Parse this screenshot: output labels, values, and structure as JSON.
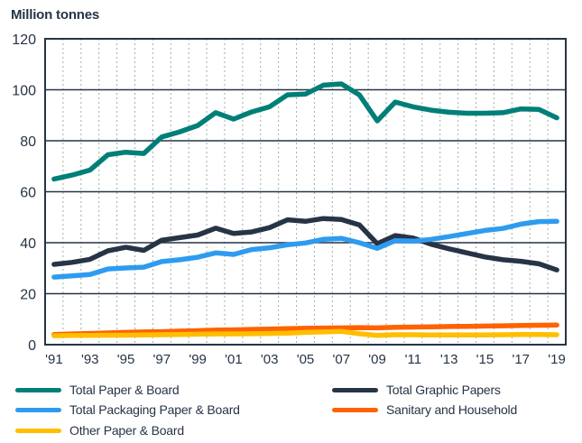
{
  "chart_data": {
    "type": "line",
    "title": "",
    "ylabel": "Million tonnes",
    "xlabel": "",
    "ylim": [
      0,
      120
    ],
    "yticks": [
      0,
      20,
      40,
      60,
      80,
      100,
      120
    ],
    "x": [
      1991,
      1992,
      1993,
      1994,
      1995,
      1996,
      1997,
      1998,
      1999,
      2000,
      2001,
      2002,
      2003,
      2004,
      2005,
      2006,
      2007,
      2008,
      2009,
      2010,
      2011,
      2012,
      2013,
      2014,
      2015,
      2016,
      2017,
      2018,
      2019
    ],
    "xtick_labels": [
      "'91",
      "'93",
      "'95",
      "'97",
      "'99",
      "'01",
      "'03",
      "'05",
      "'07",
      "'09",
      "'11",
      "'13",
      "'15",
      "'17",
      "'19"
    ],
    "xtick_years": [
      1991,
      1993,
      1995,
      1997,
      1999,
      2001,
      2003,
      2005,
      2007,
      2009,
      2011,
      2013,
      2015,
      2017,
      2019
    ],
    "grid": {
      "horizontal": true,
      "vertical_dotted": true
    },
    "legend_position": "bottom",
    "series": [
      {
        "name": "Total Paper & Board",
        "color": "#007F78",
        "values": [
          65,
          66.5,
          68.5,
          74.5,
          75.5,
          75,
          81.5,
          83.5,
          86,
          91,
          88.5,
          91.3,
          93.3,
          98,
          98.3,
          101.8,
          102.3,
          98,
          87.8,
          95.2,
          93.3,
          92,
          91.2,
          90.8,
          90.8,
          91,
          92.5,
          92.3,
          89
        ]
      },
      {
        "name": "Total Graphic Papers",
        "color": "#263445",
        "values": [
          31.5,
          32.3,
          33.5,
          36.8,
          38.2,
          37,
          41,
          42,
          43,
          45.7,
          43.6,
          44.2,
          45.9,
          49,
          48.4,
          49.5,
          49.1,
          47,
          39.6,
          42.8,
          41.8,
          39.4,
          37.6,
          36,
          34.4,
          33.3,
          32.7,
          31.7,
          29.3
        ]
      },
      {
        "name": "Total Packaging Paper & Board",
        "color": "#2E9BF0",
        "values": [
          26.5,
          27,
          27.5,
          29.7,
          30.1,
          30.4,
          32.6,
          33.3,
          34.3,
          36,
          35.4,
          37.3,
          38,
          39.2,
          39.9,
          41.3,
          41.7,
          40,
          37.8,
          40.8,
          40.6,
          41.3,
          42.4,
          43.6,
          44.8,
          45.6,
          47.3,
          48.3,
          48.4
        ]
      },
      {
        "name": "Sanitary and Household",
        "color": "#FF6200",
        "values": [
          4,
          4.2,
          4.4,
          4.6,
          4.8,
          5,
          5.1,
          5.3,
          5.5,
          5.7,
          5.8,
          6,
          6.1,
          6.3,
          6.4,
          6.5,
          6.6,
          6.7,
          6.6,
          6.8,
          6.9,
          7,
          7.1,
          7.2,
          7.3,
          7.4,
          7.5,
          7.6,
          7.7
        ]
      },
      {
        "name": "Other Paper & Board",
        "color": "#FFBE00",
        "values": [
          3.5,
          3.6,
          3.6,
          3.7,
          3.7,
          3.8,
          3.9,
          4,
          4.1,
          4.2,
          4.2,
          4.3,
          4.4,
          4.5,
          4.8,
          5,
          5.2,
          4.3,
          3.6,
          3.9,
          3.9,
          3.8,
          3.8,
          3.8,
          3.8,
          3.9,
          4,
          4,
          3.9
        ]
      }
    ]
  },
  "header": {
    "unit_label": "Million tonnes"
  },
  "legend": [
    {
      "label": "Total Paper & Board",
      "color": "#007F78"
    },
    {
      "label": "Total Graphic Papers",
      "color": "#263445"
    },
    {
      "label": "Total Packaging Paper & Board",
      "color": "#2E9BF0"
    },
    {
      "label": "Sanitary and Household",
      "color": "#FF6200"
    },
    {
      "label": "Other Paper & Board",
      "color": "#FFBE00"
    }
  ]
}
